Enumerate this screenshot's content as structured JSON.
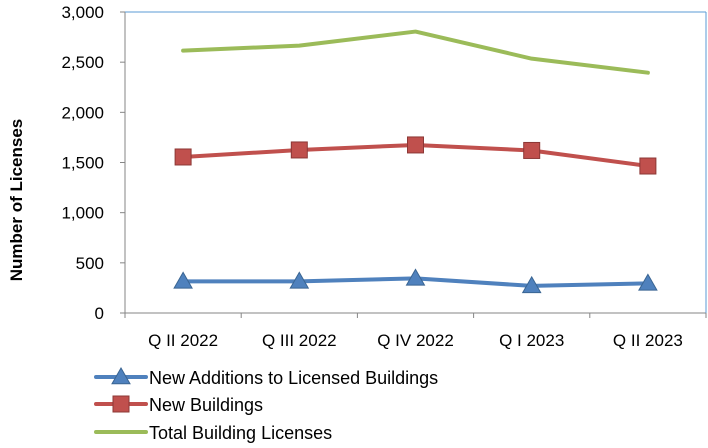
{
  "chart_data": {
    "type": "line",
    "title": "",
    "xlabel": "",
    "ylabel": "Number of Licenses",
    "categories": [
      "Q II 2022",
      "Q III 2022",
      "Q IV 2022",
      "Q I 2023",
      "Q II 2023"
    ],
    "ylim": [
      0,
      3000
    ],
    "yticks": [
      0,
      500,
      1000,
      1500,
      2000,
      2500,
      3000
    ],
    "ytick_labels": [
      "0",
      "500",
      "1,000",
      "1,500",
      "2,000",
      "2,500",
      "3,000"
    ],
    "grid": false,
    "legend_position": "bottom-left",
    "series": [
      {
        "name": "New Additions to Licensed Buildings",
        "values": [
          315,
          315,
          345,
          270,
          295
        ],
        "color": "#4f81bd",
        "marker": "triangle"
      },
      {
        "name": "New Buildings",
        "values": [
          1555,
          1625,
          1675,
          1620,
          1465
        ],
        "color": "#c0504d",
        "marker": "square"
      },
      {
        "name": "Total Building Licenses",
        "values": [
          2615,
          2665,
          2805,
          2535,
          2395
        ],
        "color": "#9bbb59",
        "marker": "none"
      }
    ]
  }
}
